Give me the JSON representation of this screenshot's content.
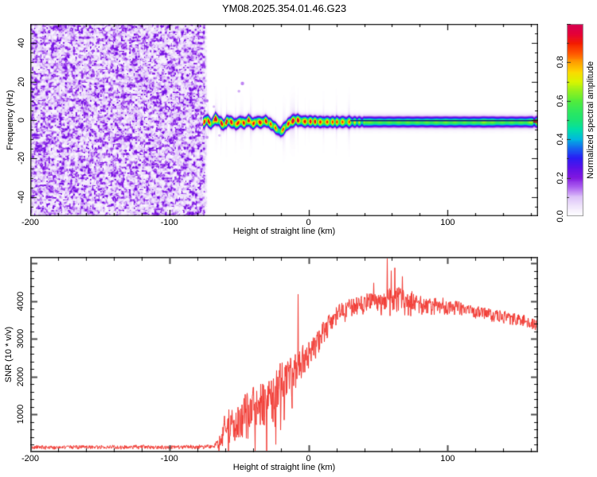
{
  "title": "YM08.2025.354.01.46.G23",
  "style": {
    "background": "#ffffff",
    "text_color": "#000000",
    "frame_color_top": "#2b2b2b",
    "frame_color_bottom": "#4f4f4f",
    "tick_color": "#111111",
    "snr_line_color": "#f23a33"
  },
  "render_seed": 20253541,
  "chart_data": [
    {
      "type": "heatmap",
      "title": "YM08.2025.354.01.46.G23",
      "xlabel": "Height of straight line (km)",
      "ylabel": "Frequency (Hz)",
      "xlim": [
        -200,
        165
      ],
      "ylim": [
        -50,
        50
      ],
      "xticks_major": [
        -200,
        -100,
        0,
        100
      ],
      "xtick_minor_step": 20,
      "yticks_major": [
        -40,
        -20,
        0,
        20,
        40
      ],
      "ytick_minor_step": 5,
      "grid": false,
      "colorbar": {
        "label": "Normalized spectral amplitude",
        "lim": [
          0,
          1
        ],
        "ticks": [
          0.0,
          0.2,
          0.4,
          0.6,
          0.8
        ],
        "tick_minor_step": 0.1,
        "stops": [
          [
            0.0,
            "#ffffff"
          ],
          [
            0.05,
            "#f0e6fb"
          ],
          [
            0.1,
            "#dcc0f8"
          ],
          [
            0.15,
            "#ab5ef0"
          ],
          [
            0.2,
            "#8018e0"
          ],
          [
            0.25,
            "#5c10e8"
          ],
          [
            0.3,
            "#2a1cf4"
          ],
          [
            0.35,
            "#1660f0"
          ],
          [
            0.4,
            "#00b8e0"
          ],
          [
            0.45,
            "#00dfa8"
          ],
          [
            0.5,
            "#1ce473"
          ],
          [
            0.55,
            "#30e85c"
          ],
          [
            0.6,
            "#55ec3a"
          ],
          [
            0.65,
            "#93f01e"
          ],
          [
            0.7,
            "#d9f500"
          ],
          [
            0.75,
            "#fdd900"
          ],
          [
            0.8,
            "#ffa000"
          ],
          [
            0.85,
            "#ff5400"
          ],
          [
            0.9,
            "#f41c00"
          ],
          [
            0.95,
            "#e4003a"
          ],
          [
            1.0,
            "#d60050"
          ]
        ]
      },
      "noise_region": {
        "x_range": [
          -200,
          -75
        ],
        "value_range": [
          0.03,
          0.22
        ]
      },
      "signal_trace": {
        "x_start_km": -76,
        "band_sigma_hz": 1.7,
        "points": [
          [
            -76,
            -1.5,
            0.95
          ],
          [
            -73,
            0.5,
            1.0
          ],
          [
            -70,
            -2.0,
            0.9
          ],
          [
            -67,
            1.0,
            1.0
          ],
          [
            -64,
            -0.5,
            0.92
          ],
          [
            -61,
            -2.5,
            1.0
          ],
          [
            -58,
            0.0,
            0.95
          ],
          [
            -55,
            -1.0,
            1.0
          ],
          [
            -52,
            -2.0,
            0.9
          ],
          [
            -49,
            -0.5,
            1.0
          ],
          [
            -46,
            -1.5,
            0.93
          ],
          [
            -43,
            0.2,
            1.0
          ],
          [
            -40,
            -1.8,
            0.92
          ],
          [
            -37,
            -0.5,
            1.0
          ],
          [
            -34,
            -1.2,
            0.95
          ],
          [
            -31,
            -0.2,
            1.0
          ],
          [
            -28,
            -1.5,
            0.9
          ],
          [
            -25,
            -3.0,
            0.92
          ],
          [
            -22,
            -5.0,
            0.8
          ],
          [
            -20,
            -6.0,
            0.72
          ],
          [
            -18,
            -4.5,
            0.85
          ],
          [
            -15,
            -2.0,
            0.95
          ],
          [
            -12,
            -0.5,
            1.0
          ],
          [
            -9,
            0.3,
            0.95
          ],
          [
            -6,
            -0.2,
            1.0
          ],
          [
            -3,
            -0.6,
            0.92
          ],
          [
            0,
            -0.5,
            0.96
          ],
          [
            4,
            -0.6,
            1.0
          ],
          [
            8,
            -0.8,
            0.92
          ],
          [
            12,
            -0.8,
            0.88
          ],
          [
            16,
            -0.8,
            0.92
          ],
          [
            20,
            -0.8,
            0.86
          ],
          [
            24,
            -0.8,
            0.88
          ],
          [
            28,
            -0.8,
            0.8
          ],
          [
            32,
            -0.8,
            0.76
          ],
          [
            36,
            -0.8,
            0.72
          ],
          [
            40,
            -0.8,
            0.68
          ],
          [
            44,
            -0.8,
            0.62
          ],
          [
            50,
            -0.8,
            0.6
          ],
          [
            60,
            -0.8,
            0.6
          ],
          [
            70,
            -0.8,
            0.61
          ],
          [
            80,
            -0.8,
            0.6
          ],
          [
            90,
            -0.8,
            0.61
          ],
          [
            100,
            -0.8,
            0.62
          ],
          [
            110,
            -0.8,
            0.6
          ],
          [
            120,
            -0.8,
            0.6
          ],
          [
            128,
            -0.8,
            0.66
          ],
          [
            135,
            -0.8,
            0.6
          ],
          [
            145,
            -0.8,
            0.6
          ],
          [
            155,
            -0.8,
            0.6
          ],
          [
            161,
            -0.8,
            0.68
          ],
          [
            165,
            -0.8,
            0.8
          ]
        ],
        "speckles": [
          [
            -47.5,
            19,
            0.13,
            2.2
          ],
          [
            -50,
            15,
            0.11,
            1.8
          ],
          [
            -73,
            10,
            0.14,
            2.0
          ],
          [
            -73,
            -9,
            0.12,
            2.0
          ],
          [
            -68,
            7,
            0.1,
            1.6
          ],
          [
            -64,
            -8,
            0.1,
            1.6
          ]
        ],
        "core_line": {
          "x_range": [
            30,
            165
          ],
          "color": "#1a1a85",
          "end_color": "#9b1c30"
        }
      }
    },
    {
      "type": "line",
      "xlabel": "Height of straight line (km)",
      "ylabel": "SNR (10 * v/v)",
      "xlim": [
        -200,
        165
      ],
      "ylim": [
        0,
        5170
      ],
      "xticks_major": [
        -200,
        -100,
        0,
        100
      ],
      "xtick_minor_step": 20,
      "yticks_major": [
        1000,
        2000,
        3000,
        4000
      ],
      "ytick_minor_step": 200,
      "grid": false,
      "series": [
        {
          "name": "SNR",
          "color": "#f23a33",
          "envelope_points": [
            [
              -200,
              140,
              55
            ],
            [
              -160,
              140,
              55
            ],
            [
              -120,
              145,
              55
            ],
            [
              -90,
              145,
              55
            ],
            [
              -75,
              150,
              58
            ],
            [
              -68,
              160,
              70
            ],
            [
              -64,
              260,
              180
            ],
            [
              -61,
              600,
              400
            ],
            [
              -57,
              800,
              520
            ],
            [
              -53,
              700,
              500
            ],
            [
              -49,
              950,
              600
            ],
            [
              -45,
              1050,
              640
            ],
            [
              -41,
              1250,
              690
            ],
            [
              -37,
              1320,
              710
            ],
            [
              -33,
              1400,
              720
            ],
            [
              -29,
              1500,
              770
            ],
            [
              -25,
              1650,
              790
            ],
            [
              -21,
              1800,
              750
            ],
            [
              -17,
              1950,
              690
            ],
            [
              -13,
              2080,
              610
            ],
            [
              -9,
              2220,
              540
            ],
            [
              -5,
              2400,
              470
            ],
            [
              -1,
              2550,
              430
            ],
            [
              3,
              2750,
              390
            ],
            [
              8,
              3000,
              350
            ],
            [
              13,
              3300,
              310
            ],
            [
              18,
              3550,
              280
            ],
            [
              23,
              3700,
              265
            ],
            [
              28,
              3820,
              260
            ],
            [
              33,
              3890,
              265
            ],
            [
              38,
              3940,
              275
            ],
            [
              43,
              3970,
              290
            ],
            [
              48,
              4000,
              310
            ],
            [
              53,
              4030,
              350
            ],
            [
              58,
              4080,
              410
            ],
            [
              63,
              4060,
              390
            ],
            [
              68,
              4030,
              340
            ],
            [
              73,
              3990,
              310
            ],
            [
              78,
              3960,
              290
            ],
            [
              85,
              3920,
              260
            ],
            [
              95,
              3880,
              235
            ],
            [
              105,
              3830,
              215
            ],
            [
              115,
              3780,
              205
            ],
            [
              125,
              3710,
              195
            ],
            [
              135,
              3640,
              190
            ],
            [
              145,
              3560,
              185
            ],
            [
              155,
              3490,
              180
            ],
            [
              165,
              3410,
              175
            ]
          ],
          "spikes": [
            [
              -7.4,
              4180
            ],
            [
              47,
              4480
            ],
            [
              56.5,
              5120
            ],
            [
              59.5,
              4800
            ],
            [
              62,
              4880
            ],
            [
              67.5,
              4650
            ]
          ]
        }
      ]
    }
  ]
}
